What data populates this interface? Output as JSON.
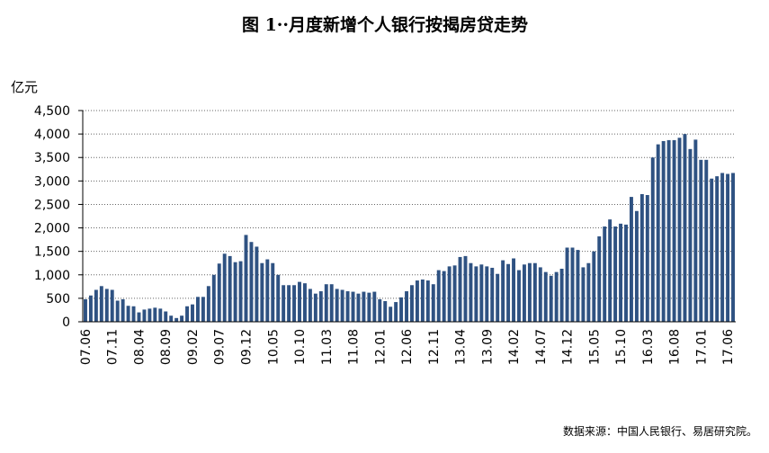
{
  "chart_data": {
    "type": "bar",
    "title": "图 1··月度新增个人银行按揭房贷走势",
    "y_label": "亿元",
    "source": "数据来源：中国人民银行、易居研究院。",
    "color": "#2f5282",
    "grid": true,
    "ylim": [
      0,
      4500
    ],
    "yticks": [
      0,
      {
        "value": 500,
        "label": "500"
      },
      {
        "value": 1000,
        "label": "1,000"
      },
      {
        "value": 1500,
        "label": "1,500"
      },
      {
        "value": 2000,
        "label": "2,000"
      },
      {
        "value": 2500,
        "label": "2,500"
      },
      {
        "value": 3000,
        "label": "3,000"
      },
      {
        "value": 3500,
        "label": "3,500"
      },
      {
        "value": 4000,
        "label": "4,000"
      },
      {
        "value": 4500,
        "label": "4,500"
      }
    ],
    "categories": [
      "07.06",
      null,
      null,
      null,
      null,
      "07.11",
      null,
      null,
      null,
      null,
      "08.04",
      null,
      null,
      null,
      null,
      "08.09",
      null,
      null,
      null,
      null,
      "09.02",
      null,
      null,
      null,
      null,
      "09.07",
      null,
      null,
      null,
      null,
      "09.12",
      null,
      null,
      null,
      null,
      "10.05",
      null,
      null,
      null,
      null,
      "10.10",
      null,
      null,
      null,
      null,
      "11.03",
      null,
      null,
      null,
      null,
      "11.08",
      null,
      null,
      null,
      null,
      "12.01",
      null,
      null,
      null,
      null,
      "12.06",
      null,
      null,
      null,
      null,
      "12.11",
      null,
      null,
      null,
      null,
      "13.04",
      null,
      null,
      null,
      null,
      "13.09",
      null,
      null,
      null,
      null,
      "14.02",
      null,
      null,
      null,
      null,
      "14.07",
      null,
      null,
      null,
      null,
      "14.12",
      null,
      null,
      null,
      null,
      "15.05",
      null,
      null,
      null,
      null,
      "15.10",
      null,
      null,
      null,
      null,
      "16.03",
      null,
      null,
      null,
      null,
      "16.08",
      null,
      null,
      null,
      null,
      "17.01",
      null,
      null,
      null,
      null,
      "17.06",
      null
    ],
    "values": [
      480,
      560,
      680,
      760,
      700,
      680,
      450,
      480,
      340,
      330,
      200,
      260,
      280,
      300,
      280,
      220,
      130,
      80,
      130,
      330,
      370,
      530,
      530,
      760,
      1000,
      1240,
      1450,
      1400,
      1270,
      1290,
      1850,
      1700,
      1600,
      1250,
      1330,
      1250,
      1000,
      780,
      780,
      780,
      850,
      820,
      700,
      600,
      650,
      800,
      800,
      700,
      680,
      650,
      640,
      600,
      640,
      620,
      640,
      480,
      440,
      320,
      420,
      520,
      650,
      780,
      880,
      900,
      880,
      800,
      1100,
      1080,
      1180,
      1200,
      1380,
      1400,
      1250,
      1180,
      1220,
      1180,
      1150,
      1020,
      1310,
      1230,
      1350,
      1100,
      1220,
      1250,
      1250,
      1160,
      1060,
      980,
      1060,
      1130,
      1580,
      1580,
      1530,
      1160,
      1250,
      1500,
      1820,
      2030,
      2180,
      2030,
      2090,
      2070,
      2660,
      2360,
      2720,
      2700,
      3500,
      3780,
      3850,
      3870,
      3870,
      3920,
      4000,
      3680,
      3880,
      3450,
      3450,
      3050,
      3100,
      3170,
      3150,
      3170
    ]
  }
}
